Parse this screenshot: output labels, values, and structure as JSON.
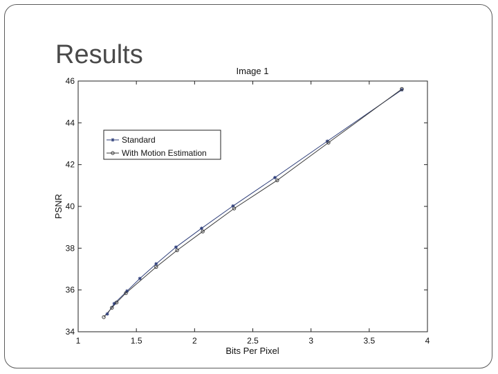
{
  "slide": {
    "title": "Results"
  },
  "chart_data": {
    "type": "line",
    "title": "Image 1",
    "xlabel": "Bits Per Pixel",
    "ylabel": "PSNR",
    "xlim": [
      1,
      4
    ],
    "ylim": [
      34,
      46
    ],
    "xticks": [
      "1",
      "1.5",
      "2",
      "2.5",
      "3",
      "3.5",
      "4"
    ],
    "yticks": [
      "34",
      "36",
      "38",
      "40",
      "42",
      "44",
      "46"
    ],
    "grid": false,
    "legend_position": "upper-left",
    "series": [
      {
        "name": "Standard",
        "marker": "star",
        "color": "#2f3f7a",
        "x": [
          1.25,
          1.31,
          1.42,
          1.53,
          1.67,
          1.84,
          2.06,
          2.33,
          2.69,
          3.14,
          3.78
        ],
        "y": [
          34.85,
          35.35,
          35.95,
          36.55,
          37.25,
          38.05,
          38.95,
          40.02,
          41.38,
          43.12,
          45.58
        ]
      },
      {
        "name": "With Motion Estimation",
        "marker": "circle",
        "color": "#3a3a3a",
        "x": [
          1.22,
          1.29,
          1.33,
          1.41,
          1.67,
          1.85,
          2.07,
          2.34,
          2.71,
          3.15,
          3.78
        ],
        "y": [
          34.7,
          35.15,
          35.4,
          35.85,
          37.1,
          37.9,
          38.8,
          39.9,
          41.25,
          43.05,
          45.62
        ]
      }
    ]
  }
}
